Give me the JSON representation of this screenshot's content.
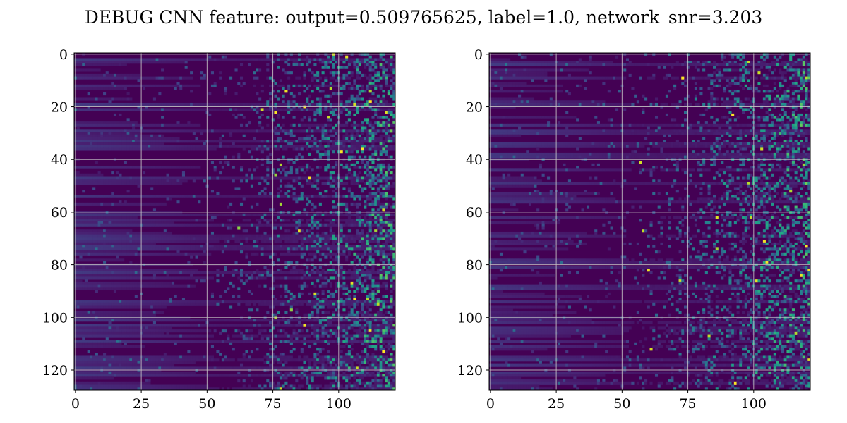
{
  "figure": {
    "title": "DEBUG CNN feature: output=0.509765625, label=1.0, network_snr=3.203"
  },
  "chart_data": [
    {
      "type": "heatmap",
      "colormap": "viridis",
      "grid": true,
      "rows": 128,
      "cols": 122,
      "xlim": [
        -0.5,
        121.5
      ],
      "ylim": [
        127.5,
        -0.5
      ],
      "xticks": [
        0,
        25,
        50,
        75,
        100
      ],
      "yticks": [
        0,
        20,
        40,
        60,
        80,
        100,
        120
      ],
      "xtick_labels": [
        "0",
        "25",
        "50",
        "75",
        "100"
      ],
      "ytick_labels": [
        "0",
        "20",
        "40",
        "60",
        "80",
        "100",
        "120"
      ],
      "pattern": "low, smooth horizontal streaks in columns 0-45; increasingly noisy bright speckles toward columns 70-121",
      "seed": 7
    },
    {
      "type": "heatmap",
      "colormap": "viridis",
      "grid": true,
      "rows": 128,
      "cols": 122,
      "xlim": [
        -0.5,
        121.5
      ],
      "ylim": [
        127.5,
        -0.5
      ],
      "xticks": [
        0,
        25,
        50,
        75,
        100
      ],
      "yticks": [
        0,
        20,
        40,
        60,
        80,
        100,
        120
      ],
      "xtick_labels": [
        "0",
        "25",
        "50",
        "75",
        "100"
      ],
      "ytick_labels": [
        "0",
        "20",
        "40",
        "60",
        "80",
        "100",
        "120"
      ],
      "pattern": "low, smooth horizontal streaks in columns 0-45; increasingly noisy bright speckles toward columns 65-121",
      "seed": 19
    }
  ]
}
